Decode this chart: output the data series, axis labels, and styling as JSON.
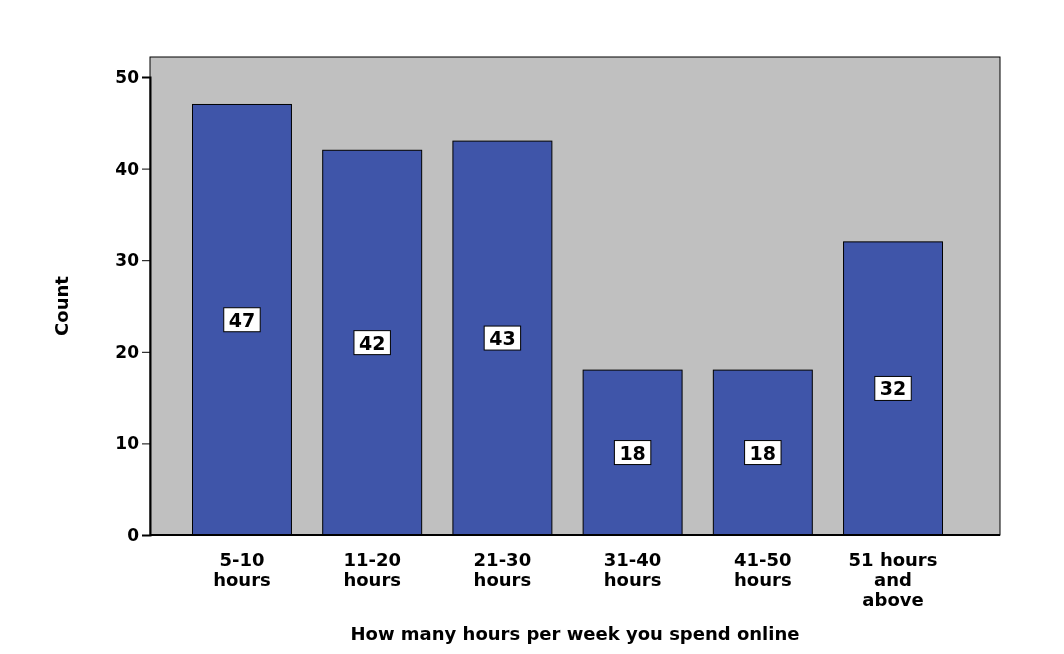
{
  "chart_data": {
    "type": "bar",
    "xlabel": "How many hours per week you spend online",
    "ylabel": "Count",
    "categories": [
      "5-10 hours",
      "11-20 hours",
      "21-30 hours",
      "31-40 hours",
      "41-50 hours",
      "51 hours and above"
    ],
    "values": [
      47,
      42,
      43,
      18,
      18,
      32
    ],
    "color": "#3f55a9",
    "ylim": [
      0,
      50
    ],
    "yticks": [
      0,
      10,
      20,
      30,
      40,
      50
    ],
    "grid": false,
    "data_labels": true
  }
}
